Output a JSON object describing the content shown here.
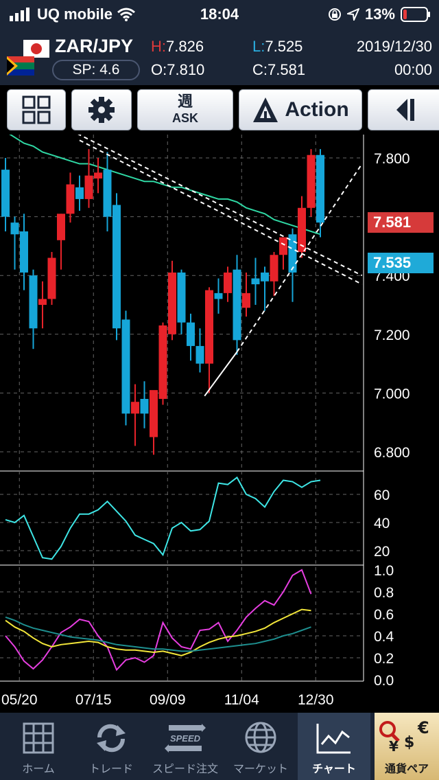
{
  "status_bar": {
    "carrier": "UQ mobile",
    "time": "18:04",
    "battery": "13%"
  },
  "header": {
    "pair": "ZAR/JPY",
    "spread": "SP: 4.6",
    "high_label": "H:",
    "high": "7.826",
    "low_label": "L:",
    "low": "7.525",
    "open_label": "O:",
    "open": "7.810",
    "close_label": "C:",
    "close": "7.581",
    "date": "2019/12/30",
    "time": "00:00"
  },
  "toolbar": {
    "period_label": "週",
    "side_label": "ASK",
    "action_label": "Action"
  },
  "price_tags": {
    "ask": "7.581",
    "bid": "7.535"
  },
  "colors": {
    "up": "#e8232a",
    "down": "#16a6d9",
    "ma": "#2fd8a4",
    "rsi": "#3ee6e6",
    "stoch_k": "#e63ee0",
    "stoch_d": "#f2e63a",
    "stoch_slow": "#1e8f8f",
    "tag_red": "#d63a3a",
    "tag_blue": "#1faad8"
  },
  "chart_data": [
    {
      "type": "candlestick",
      "title": "ZAR/JPY",
      "ylim": [
        6.75,
        7.95
      ],
      "y_ticks": [
        "7.800",
        "7.400",
        "7.200",
        "7.000",
        "6.800"
      ],
      "x_ticks": [
        "05/20",
        "07/15",
        "09/09",
        "11/04",
        "12/30"
      ],
      "candles": [
        {
          "o": 7.76,
          "h": 7.8,
          "l": 7.55,
          "c": 7.6
        },
        {
          "o": 7.58,
          "h": 7.6,
          "l": 7.42,
          "c": 7.54
        },
        {
          "o": 7.55,
          "h": 7.61,
          "l": 7.35,
          "c": 7.41
        },
        {
          "o": 7.4,
          "h": 7.42,
          "l": 7.15,
          "c": 7.22
        },
        {
          "o": 7.3,
          "h": 7.38,
          "l": 7.22,
          "c": 7.32
        },
        {
          "o": 7.32,
          "h": 7.48,
          "l": 7.3,
          "c": 7.46
        },
        {
          "o": 7.52,
          "h": 7.61,
          "l": 7.42,
          "c": 7.61
        },
        {
          "o": 7.61,
          "h": 7.75,
          "l": 7.58,
          "c": 7.71
        },
        {
          "o": 7.7,
          "h": 7.74,
          "l": 7.62,
          "c": 7.66
        },
        {
          "o": 7.66,
          "h": 7.83,
          "l": 7.63,
          "c": 7.74
        },
        {
          "o": 7.73,
          "h": 7.8,
          "l": 7.68,
          "c": 7.75
        },
        {
          "o": 7.76,
          "h": 7.82,
          "l": 7.55,
          "c": 7.6
        },
        {
          "o": 7.64,
          "h": 7.68,
          "l": 7.18,
          "c": 7.22
        },
        {
          "o": 7.25,
          "h": 7.28,
          "l": 6.89,
          "c": 6.93
        },
        {
          "o": 6.93,
          "h": 7.03,
          "l": 6.82,
          "c": 6.97
        },
        {
          "o": 6.98,
          "h": 7.04,
          "l": 6.88,
          "c": 6.93
        },
        {
          "o": 6.85,
          "h": 7.0,
          "l": 6.79,
          "c": 7.01
        },
        {
          "o": 6.98,
          "h": 7.24,
          "l": 6.96,
          "c": 7.23
        },
        {
          "o": 7.2,
          "h": 7.45,
          "l": 7.18,
          "c": 7.41
        },
        {
          "o": 7.41,
          "h": 7.42,
          "l": 7.2,
          "c": 7.24
        },
        {
          "o": 7.24,
          "h": 7.27,
          "l": 7.11,
          "c": 7.16
        },
        {
          "o": 7.16,
          "h": 7.22,
          "l": 7.07,
          "c": 7.1
        },
        {
          "o": 7.1,
          "h": 7.36,
          "l": 7.0,
          "c": 7.35
        },
        {
          "o": 7.34,
          "h": 7.39,
          "l": 7.27,
          "c": 7.32
        },
        {
          "o": 7.34,
          "h": 7.43,
          "l": 7.31,
          "c": 7.41
        },
        {
          "o": 7.42,
          "h": 7.47,
          "l": 7.13,
          "c": 7.18
        },
        {
          "o": 7.29,
          "h": 7.41,
          "l": 7.26,
          "c": 7.34
        },
        {
          "o": 7.39,
          "h": 7.46,
          "l": 7.3,
          "c": 7.37
        },
        {
          "o": 7.41,
          "h": 7.43,
          "l": 7.28,
          "c": 7.38
        },
        {
          "o": 7.38,
          "h": 7.48,
          "l": 7.33,
          "c": 7.47
        },
        {
          "o": 7.47,
          "h": 7.52,
          "l": 7.42,
          "c": 7.53
        },
        {
          "o": 7.54,
          "h": 7.56,
          "l": 7.31,
          "c": 7.41
        },
        {
          "o": 7.48,
          "h": 7.67,
          "l": 7.46,
          "c": 7.63
        },
        {
          "o": 7.63,
          "h": 7.83,
          "l": 7.6,
          "c": 7.81
        },
        {
          "o": 7.81,
          "h": 7.83,
          "l": 7.53,
          "c": 7.58
        }
      ],
      "moving_average": [
        7.89,
        7.87,
        7.85,
        7.84,
        7.82,
        7.81,
        7.8,
        7.79,
        7.78,
        7.78,
        7.77,
        7.76,
        7.75,
        7.74,
        7.73,
        7.72,
        7.72,
        7.71,
        7.7,
        7.7,
        7.69,
        7.68,
        7.67,
        7.66,
        7.66,
        7.65,
        7.63,
        7.62,
        7.61,
        7.59,
        7.58,
        7.57,
        7.56,
        7.55,
        7.54
      ],
      "trendlines": [
        {
          "name": "down",
          "from": [
            -1,
            8.02
          ],
          "to": [
            38.5,
            7.4
          ]
        },
        {
          "name": "down",
          "from": [
            8,
            7.86
          ],
          "to": [
            38.5,
            7.37
          ]
        },
        {
          "name": "up",
          "from": [
            21.5,
            6.99
          ],
          "to": [
            25,
            7.14
          ]
        },
        {
          "name": "up",
          "from": [
            25,
            7.14
          ],
          "to": [
            38.5,
            7.78
          ]
        }
      ]
    },
    {
      "type": "line",
      "ylim": [
        10,
        75
      ],
      "y_ticks": [
        "60",
        "40",
        "20"
      ],
      "series": [
        {
          "values": [
            42,
            40,
            45,
            30,
            15,
            14,
            23,
            36,
            46,
            46,
            49,
            55,
            48,
            41,
            31,
            28,
            25,
            17,
            36,
            40,
            34,
            35,
            41,
            68,
            67,
            72,
            60,
            57,
            51,
            62,
            70,
            69,
            65,
            69,
            70
          ]
        }
      ]
    },
    {
      "type": "line",
      "ylim": [
        0,
        1.05
      ],
      "y_ticks": [
        "1.0",
        "0.8",
        "0.6",
        "0.4",
        "0.2",
        "0.0"
      ],
      "series": [
        {
          "values": [
            0.4,
            0.3,
            0.17,
            0.1,
            0.18,
            0.3,
            0.43,
            0.48,
            0.55,
            0.53,
            0.4,
            0.3,
            0.09,
            0.18,
            0.2,
            0.16,
            0.22,
            0.52,
            0.38,
            0.3,
            0.28,
            0.45,
            0.46,
            0.52,
            0.35,
            0.45,
            0.57,
            0.65,
            0.72,
            0.68,
            0.8,
            0.95,
            1.0,
            0.78
          ]
        },
        {
          "values": [
            0.54,
            0.48,
            0.44,
            0.38,
            0.33,
            0.3,
            0.32,
            0.33,
            0.34,
            0.35,
            0.34,
            0.3,
            0.28,
            0.27,
            0.27,
            0.26,
            0.25,
            0.26,
            0.24,
            0.22,
            0.25,
            0.3,
            0.34,
            0.37,
            0.39,
            0.4,
            0.42,
            0.44,
            0.47,
            0.52,
            0.56,
            0.6,
            0.64,
            0.63
          ]
        },
        {
          "values": [
            0.57,
            0.54,
            0.5,
            0.47,
            0.45,
            0.43,
            0.41,
            0.39,
            0.38,
            0.37,
            0.36,
            0.34,
            0.32,
            0.31,
            0.3,
            0.29,
            0.28,
            0.28,
            0.27,
            0.26,
            0.26,
            0.27,
            0.28,
            0.29,
            0.3,
            0.31,
            0.32,
            0.33,
            0.35,
            0.37,
            0.4,
            0.42,
            0.45,
            0.48
          ]
        }
      ]
    }
  ],
  "tab_bar": {
    "home": "ホーム",
    "trade": "トレード",
    "speed_order": "スピード注文",
    "speed_icon_text": "SPEED",
    "market": "マーケット",
    "chart": "チャート",
    "currency_pair": "通貨ペア"
  }
}
